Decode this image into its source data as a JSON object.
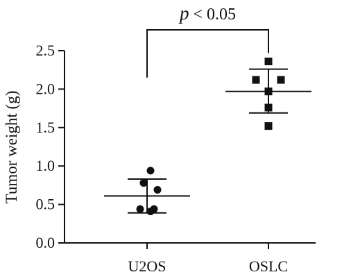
{
  "chart_data": {
    "type": "scatter",
    "ylabel": "Tumor weight (g)",
    "xlabel": "",
    "ylim": [
      0,
      2.5
    ],
    "yticks": [
      0.0,
      0.5,
      1.0,
      1.5,
      2.0,
      2.5
    ],
    "ytick_labels": [
      "0.0",
      "0.5",
      "1.0",
      "1.5",
      "2.0",
      "2.5"
    ],
    "categories": [
      "U2OS",
      "OSLC"
    ],
    "groups": [
      {
        "category": "U2OS",
        "marker": "circle",
        "points": [
          0.94,
          0.78,
          0.69,
          0.44,
          0.44,
          0.41
        ],
        "mean": 0.61,
        "sd_low": 0.39,
        "sd_high": 0.83
      },
      {
        "category": "OSLC",
        "marker": "square",
        "points": [
          2.36,
          2.12,
          2.12,
          1.97,
          1.76,
          1.52
        ],
        "mean": 1.97,
        "sd_low": 1.69,
        "sd_high": 2.26
      }
    ],
    "annotation": {
      "p_symbol": "p",
      "text": " < 0.05"
    },
    "colors": {
      "marker": "#111111",
      "axis": "#111111"
    }
  }
}
